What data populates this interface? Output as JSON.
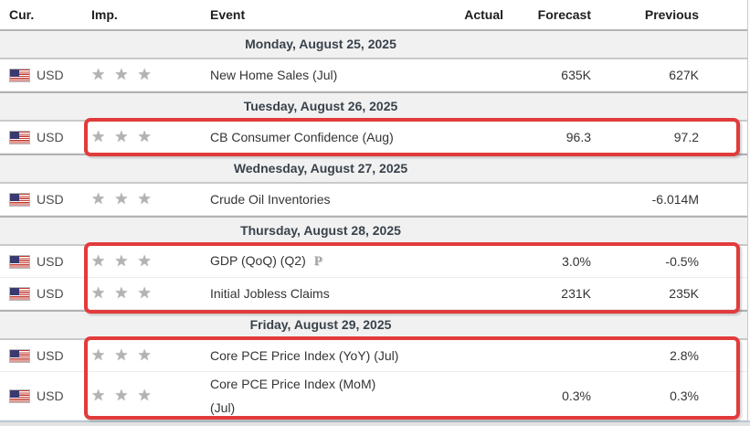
{
  "ui": {
    "star_glyph": "★",
    "star_color": "#b3b3b3",
    "highlight_color": "#e23b3b",
    "day_header_bg": "#f1f1f1",
    "day_header_text_color": "#39424b",
    "flag_icon": "us-flag"
  },
  "columns": {
    "cur": "Cur.",
    "imp": "Imp.",
    "event": "Event",
    "actual": "Actual",
    "forecast": "Forecast",
    "previous": "Previous"
  },
  "days": [
    {
      "label": "Monday, August 25, 2025"
    },
    {
      "label": "Tuesday, August 26, 2025"
    },
    {
      "label": "Wednesday, August 27, 2025"
    },
    {
      "label": "Thursday, August 28, 2025"
    },
    {
      "label": "Friday, August 29, 2025"
    }
  ],
  "events": [
    {
      "cur": "USD",
      "importance": 3,
      "event": "New Home Sales (Jul)",
      "actual": "",
      "forecast": "635K",
      "previous": "627K",
      "highlighted": false
    },
    {
      "cur": "USD",
      "importance": 3,
      "event": "CB Consumer Confidence (Aug)",
      "actual": "",
      "forecast": "96.3",
      "previous": "97.2",
      "highlighted": true
    },
    {
      "cur": "USD",
      "importance": 3,
      "event": "Crude Oil Inventories",
      "actual": "",
      "forecast": "",
      "previous": "-6.014M",
      "highlighted": false
    },
    {
      "cur": "USD",
      "importance": 3,
      "event": "GDP (QoQ) (Q2)",
      "marker": "P",
      "actual": "",
      "forecast": "3.0%",
      "previous": "-0.5%",
      "highlighted": true
    },
    {
      "cur": "USD",
      "importance": 3,
      "event": "Initial Jobless Claims",
      "actual": "",
      "forecast": "231K",
      "previous": "235K",
      "highlighted": true
    },
    {
      "cur": "USD",
      "importance": 3,
      "event": "Core PCE Price Index (YoY) (Jul)",
      "actual": "",
      "forecast": "",
      "previous": "2.8%",
      "highlighted": true
    },
    {
      "cur": "USD",
      "importance": 3,
      "event": "Core PCE Price Index (MoM)",
      "event_line2": "(Jul)",
      "actual": "",
      "forecast": "0.3%",
      "previous": "0.3%",
      "highlighted": true
    }
  ]
}
